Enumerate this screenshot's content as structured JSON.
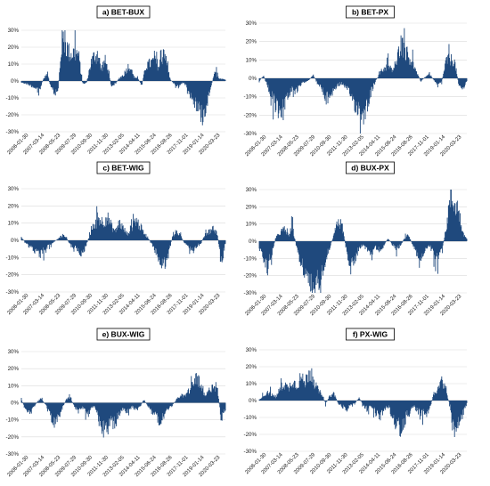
{
  "chart_data": [
    {
      "type": "area",
      "title": "a) BET-BUX",
      "ylim": [
        -30,
        30
      ],
      "yticks": [
        "30%",
        "20%",
        "10%",
        "0%",
        "-10%",
        "-20%",
        "-30%"
      ],
      "x_ticks": [
        "2006-01-30",
        "2007-03-14",
        "2008-05-23",
        "2009-07-29",
        "2010-09-30",
        "2011-11-30",
        "2013-02-05",
        "2014-04-11",
        "2015-06-24",
        "2016-08-26",
        "2017-11-01",
        "2019-01-14",
        "2020-03-23"
      ],
      "series_color": "#1f497d",
      "segments": [
        [
          0,
          -1
        ],
        [
          0.03,
          -2
        ],
        [
          0.06,
          -4
        ],
        [
          0.09,
          -6
        ],
        [
          0.11,
          2
        ],
        [
          0.13,
          5
        ],
        [
          0.14,
          -3
        ],
        [
          0.16,
          -8
        ],
        [
          0.18,
          -6
        ],
        [
          0.2,
          30
        ],
        [
          0.22,
          24
        ],
        [
          0.24,
          18
        ],
        [
          0.26,
          20
        ],
        [
          0.28,
          18
        ],
        [
          0.3,
          -2
        ],
        [
          0.32,
          -1
        ],
        [
          0.34,
          12
        ],
        [
          0.36,
          18
        ],
        [
          0.38,
          16
        ],
        [
          0.39,
          8
        ],
        [
          0.41,
          14
        ],
        [
          0.42,
          10
        ],
        [
          0.43,
          5
        ],
        [
          0.44,
          -3
        ],
        [
          0.46,
          -2
        ],
        [
          0.48,
          2
        ],
        [
          0.5,
          4
        ],
        [
          0.52,
          9
        ],
        [
          0.53,
          11
        ],
        [
          0.55,
          3
        ],
        [
          0.57,
          2
        ],
        [
          0.59,
          -3
        ],
        [
          0.61,
          10
        ],
        [
          0.63,
          12
        ],
        [
          0.65,
          14
        ],
        [
          0.67,
          11
        ],
        [
          0.68,
          9
        ],
        [
          0.7,
          24
        ],
        [
          0.71,
          13
        ],
        [
          0.73,
          1
        ],
        [
          0.75,
          -2
        ],
        [
          0.77,
          -4
        ],
        [
          0.79,
          -1
        ],
        [
          0.81,
          -3
        ],
        [
          0.83,
          -10
        ],
        [
          0.85,
          -14
        ],
        [
          0.87,
          -20
        ],
        [
          0.89,
          -24
        ],
        [
          0.91,
          -15
        ],
        [
          0.93,
          -3
        ],
        [
          0.95,
          6
        ],
        [
          0.97,
          2
        ],
        [
          1.0,
          1
        ]
      ]
    },
    {
      "type": "area",
      "title": "b) BET-PX",
      "ylim": [
        -30,
        30
      ],
      "yticks": [
        "30%",
        "20%",
        "10%",
        "0%",
        "-10%",
        "-20%",
        "-30%"
      ],
      "x_ticks": [
        "2006-01-30",
        "2007-03-14",
        "2008-05-23",
        "2009-07-29",
        "2010-09-30",
        "2011-11-30",
        "2013-02-05",
        "2014-04-11",
        "2015-06-24",
        "2016-08-26",
        "2017-11-01",
        "2019-01-14",
        "2020-03-23"
      ],
      "series_color": "#1f497d",
      "segments": [
        [
          0,
          -2
        ],
        [
          0.02,
          2
        ],
        [
          0.04,
          -5
        ],
        [
          0.06,
          -12
        ],
        [
          0.08,
          -18
        ],
        [
          0.1,
          -21
        ],
        [
          0.12,
          -16
        ],
        [
          0.14,
          -10
        ],
        [
          0.16,
          -6
        ],
        [
          0.18,
          -9
        ],
        [
          0.2,
          -4
        ],
        [
          0.22,
          -2
        ],
        [
          0.24,
          -1
        ],
        [
          0.26,
          2
        ],
        [
          0.28,
          -3
        ],
        [
          0.3,
          -6
        ],
        [
          0.32,
          -14
        ],
        [
          0.34,
          -11
        ],
        [
          0.36,
          -7
        ],
        [
          0.38,
          -4
        ],
        [
          0.4,
          -3
        ],
        [
          0.42,
          -7
        ],
        [
          0.44,
          -10
        ],
        [
          0.46,
          -16
        ],
        [
          0.48,
          -20
        ],
        [
          0.5,
          -23
        ],
        [
          0.52,
          -17
        ],
        [
          0.54,
          -8
        ],
        [
          0.56,
          -2
        ],
        [
          0.58,
          3
        ],
        [
          0.6,
          6
        ],
        [
          0.62,
          8
        ],
        [
          0.64,
          5
        ],
        [
          0.66,
          8
        ],
        [
          0.68,
          23
        ],
        [
          0.7,
          18
        ],
        [
          0.72,
          14
        ],
        [
          0.74,
          9
        ],
        [
          0.76,
          3
        ],
        [
          0.78,
          -2
        ],
        [
          0.8,
          1
        ],
        [
          0.82,
          3
        ],
        [
          0.84,
          -1
        ],
        [
          0.86,
          -3
        ],
        [
          0.88,
          -2
        ],
        [
          0.9,
          11
        ],
        [
          0.92,
          12
        ],
        [
          0.94,
          11
        ],
        [
          0.96,
          -3
        ],
        [
          0.98,
          -7
        ],
        [
          1.0,
          -2
        ]
      ]
    },
    {
      "type": "area",
      "title": "c) BET-WIG",
      "ylim": [
        -30,
        30
      ],
      "yticks": [
        "30%",
        "20%",
        "10%",
        "0%",
        "-10%",
        "-20%",
        "-30%"
      ],
      "x_ticks": [
        "2006-01-30",
        "2007-03-14",
        "2008-05-23",
        "2009-07-29",
        "2010-09-30",
        "2011-11-30",
        "2013-02-05",
        "2014-04-11",
        "2015-06-24",
        "2016-08-26",
        "2017-11-01",
        "2019-01-14",
        "2020-03-23"
      ],
      "series_color": "#1f497d",
      "segments": [
        [
          0,
          2
        ],
        [
          0.03,
          -3
        ],
        [
          0.06,
          -6
        ],
        [
          0.09,
          -10
        ],
        [
          0.12,
          -5
        ],
        [
          0.15,
          -2
        ],
        [
          0.18,
          1
        ],
        [
          0.21,
          4
        ],
        [
          0.24,
          -3
        ],
        [
          0.27,
          -6
        ],
        [
          0.3,
          -9
        ],
        [
          0.32,
          -2
        ],
        [
          0.34,
          5
        ],
        [
          0.36,
          10
        ],
        [
          0.38,
          15
        ],
        [
          0.4,
          12
        ],
        [
          0.42,
          16
        ],
        [
          0.44,
          10
        ],
        [
          0.46,
          6
        ],
        [
          0.48,
          12
        ],
        [
          0.5,
          8
        ],
        [
          0.52,
          4
        ],
        [
          0.54,
          9
        ],
        [
          0.56,
          14
        ],
        [
          0.58,
          10
        ],
        [
          0.6,
          5
        ],
        [
          0.62,
          2
        ],
        [
          0.64,
          -3
        ],
        [
          0.66,
          -8
        ],
        [
          0.68,
          -14
        ],
        [
          0.7,
          -18
        ],
        [
          0.72,
          -10
        ],
        [
          0.74,
          2
        ],
        [
          0.76,
          6
        ],
        [
          0.78,
          3
        ],
        [
          0.8,
          -2
        ],
        [
          0.82,
          -5
        ],
        [
          0.84,
          -8
        ],
        [
          0.86,
          -4
        ],
        [
          0.88,
          -2
        ],
        [
          0.9,
          4
        ],
        [
          0.92,
          6
        ],
        [
          0.94,
          8
        ],
        [
          0.96,
          5
        ],
        [
          0.98,
          -16
        ],
        [
          1.0,
          -2
        ]
      ]
    },
    {
      "type": "area",
      "title": "d) BUX-PX",
      "ylim": [
        -30,
        30
      ],
      "yticks": [
        "30%",
        "20%",
        "10%",
        "0%",
        "-10%",
        "-20%",
        "-30%"
      ],
      "x_ticks": [
        "2006-01-30",
        "2007-03-14",
        "2008-05-23",
        "2009-07-29",
        "2010-09-30",
        "2011-11-30",
        "2013-02-05",
        "2014-04-11",
        "2015-06-24",
        "2016-08-26",
        "2017-11-01",
        "2019-01-14",
        "2020-03-23"
      ],
      "series_color": "#1f497d",
      "segments": [
        [
          0,
          -4
        ],
        [
          0.02,
          -12
        ],
        [
          0.04,
          -16
        ],
        [
          0.06,
          -8
        ],
        [
          0.08,
          2
        ],
        [
          0.1,
          6
        ],
        [
          0.12,
          8
        ],
        [
          0.14,
          4
        ],
        [
          0.16,
          9
        ],
        [
          0.18,
          -4
        ],
        [
          0.2,
          -14
        ],
        [
          0.22,
          -22
        ],
        [
          0.24,
          -30
        ],
        [
          0.26,
          -34
        ],
        [
          0.28,
          -28
        ],
        [
          0.3,
          -20
        ],
        [
          0.32,
          -12
        ],
        [
          0.34,
          -4
        ],
        [
          0.36,
          4
        ],
        [
          0.38,
          14
        ],
        [
          0.4,
          10
        ],
        [
          0.42,
          -6
        ],
        [
          0.44,
          -18
        ],
        [
          0.46,
          -12
        ],
        [
          0.48,
          -5
        ],
        [
          0.5,
          -2
        ],
        [
          0.52,
          -6
        ],
        [
          0.54,
          -8
        ],
        [
          0.56,
          -4
        ],
        [
          0.58,
          -6
        ],
        [
          0.6,
          -3
        ],
        [
          0.62,
          2
        ],
        [
          0.64,
          -2
        ],
        [
          0.66,
          -5
        ],
        [
          0.68,
          -3
        ],
        [
          0.7,
          2
        ],
        [
          0.72,
          4
        ],
        [
          0.74,
          -3
        ],
        [
          0.76,
          -8
        ],
        [
          0.78,
          -12
        ],
        [
          0.8,
          -6
        ],
        [
          0.82,
          -3
        ],
        [
          0.84,
          -8
        ],
        [
          0.86,
          -12
        ],
        [
          0.88,
          -6
        ],
        [
          0.9,
          8
        ],
        [
          0.92,
          29
        ],
        [
          0.94,
          26
        ],
        [
          0.96,
          22
        ],
        [
          0.98,
          5
        ],
        [
          1.0,
          2
        ]
      ]
    },
    {
      "type": "area",
      "title": "e) BUX-WIG",
      "ylim": [
        -30,
        30
      ],
      "yticks": [
        "30%",
        "20%",
        "10%",
        "0%",
        "-10%",
        "-20%",
        "-30%"
      ],
      "x_ticks": [
        "2006-01-30",
        "2007-03-14",
        "2008-05-23",
        "2009-07-29",
        "2010-09-30",
        "2011-11-30",
        "2013-02-05",
        "2014-04-11",
        "2015-06-24",
        "2016-08-26",
        "2017-11-01",
        "2019-01-14",
        "2020-03-23"
      ],
      "series_color": "#1f497d",
      "segments": [
        [
          0,
          2
        ],
        [
          0.02,
          -4
        ],
        [
          0.04,
          -6
        ],
        [
          0.06,
          -3
        ],
        [
          0.08,
          1
        ],
        [
          0.1,
          3
        ],
        [
          0.12,
          -2
        ],
        [
          0.14,
          -8
        ],
        [
          0.16,
          -14
        ],
        [
          0.18,
          -10
        ],
        [
          0.2,
          -4
        ],
        [
          0.22,
          2
        ],
        [
          0.24,
          4
        ],
        [
          0.26,
          -3
        ],
        [
          0.28,
          -6
        ],
        [
          0.3,
          -3
        ],
        [
          0.32,
          -8
        ],
        [
          0.34,
          -4
        ],
        [
          0.36,
          -2
        ],
        [
          0.38,
          -12
        ],
        [
          0.4,
          -18
        ],
        [
          0.42,
          -16
        ],
        [
          0.44,
          -12
        ],
        [
          0.46,
          -14
        ],
        [
          0.48,
          -8
        ],
        [
          0.5,
          -4
        ],
        [
          0.52,
          -6
        ],
        [
          0.54,
          -2
        ],
        [
          0.56,
          -5
        ],
        [
          0.58,
          -3
        ],
        [
          0.6,
          2
        ],
        [
          0.62,
          -2
        ],
        [
          0.64,
          -6
        ],
        [
          0.66,
          -10
        ],
        [
          0.68,
          -12
        ],
        [
          0.7,
          -8
        ],
        [
          0.72,
          -4
        ],
        [
          0.74,
          -2
        ],
        [
          0.76,
          2
        ],
        [
          0.78,
          5
        ],
        [
          0.8,
          4
        ],
        [
          0.82,
          8
        ],
        [
          0.84,
          12
        ],
        [
          0.86,
          18
        ],
        [
          0.88,
          10
        ],
        [
          0.9,
          4
        ],
        [
          0.92,
          8
        ],
        [
          0.94,
          13
        ],
        [
          0.96,
          10
        ],
        [
          0.98,
          -12
        ],
        [
          1.0,
          -4
        ]
      ]
    },
    {
      "type": "area",
      "title": "f) PX-WIG",
      "ylim": [
        -30,
        30
      ],
      "yticks": [
        "30%",
        "20%",
        "10%",
        "0%",
        "-10%",
        "-20%",
        "-30%"
      ],
      "x_ticks": [
        "2006-01-30",
        "2007-03-14",
        "2008-05-23",
        "2009-07-29",
        "2010-09-30",
        "2011-11-30",
        "2013-02-05",
        "2014-04-11",
        "2015-06-24",
        "2016-08-26",
        "2017-11-01",
        "2019-01-14",
        "2020-03-23"
      ],
      "series_color": "#1f497d",
      "segments": [
        [
          0,
          1
        ],
        [
          0.02,
          3
        ],
        [
          0.04,
          6
        ],
        [
          0.06,
          4
        ],
        [
          0.08,
          2
        ],
        [
          0.1,
          8
        ],
        [
          0.12,
          12
        ],
        [
          0.14,
          8
        ],
        [
          0.16,
          14
        ],
        [
          0.18,
          10
        ],
        [
          0.2,
          16
        ],
        [
          0.22,
          12
        ],
        [
          0.24,
          20
        ],
        [
          0.26,
          14
        ],
        [
          0.28,
          8
        ],
        [
          0.3,
          4
        ],
        [
          0.32,
          -2
        ],
        [
          0.34,
          3
        ],
        [
          0.36,
          5
        ],
        [
          0.38,
          -2
        ],
        [
          0.4,
          -4
        ],
        [
          0.42,
          -6
        ],
        [
          0.44,
          -4
        ],
        [
          0.46,
          -2
        ],
        [
          0.48,
          2
        ],
        [
          0.5,
          -3
        ],
        [
          0.52,
          -6
        ],
        [
          0.54,
          -3
        ],
        [
          0.56,
          -8
        ],
        [
          0.58,
          -12
        ],
        [
          0.6,
          -6
        ],
        [
          0.62,
          -4
        ],
        [
          0.64,
          -10
        ],
        [
          0.66,
          -16
        ],
        [
          0.68,
          -20
        ],
        [
          0.7,
          -14
        ],
        [
          0.72,
          -8
        ],
        [
          0.74,
          -4
        ],
        [
          0.76,
          -6
        ],
        [
          0.78,
          -8
        ],
        [
          0.8,
          -10
        ],
        [
          0.82,
          -6
        ],
        [
          0.84,
          4
        ],
        [
          0.86,
          8
        ],
        [
          0.88,
          14
        ],
        [
          0.9,
          6
        ],
        [
          0.92,
          -4
        ],
        [
          0.94,
          -27
        ],
        [
          0.96,
          -16
        ],
        [
          0.98,
          -10
        ],
        [
          1.0,
          -2
        ]
      ]
    }
  ]
}
